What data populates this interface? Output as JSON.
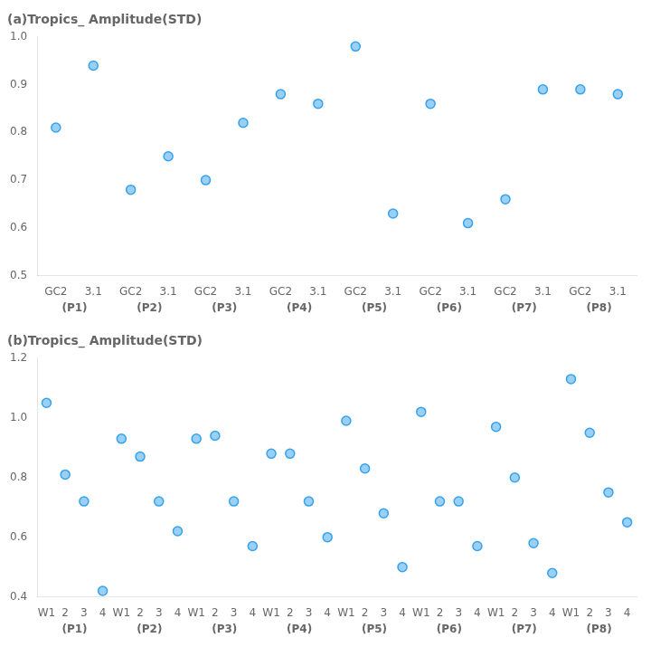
{
  "chart_data": [
    {
      "type": "scatter",
      "title": "(a)Tropics_ Amplitude(STD)",
      "categories": [
        "GC2",
        "3.1",
        "GC2",
        "3.1",
        "GC2",
        "3.1",
        "GC2",
        "3.1",
        "GC2",
        "3.1",
        "GC2",
        "3.1",
        "GC2",
        "3.1",
        "GC2",
        "3.1"
      ],
      "values": [
        0.81,
        0.94,
        0.68,
        0.75,
        0.7,
        0.82,
        0.88,
        0.86,
        0.98,
        0.63,
        0.86,
        0.61,
        0.66,
        0.89,
        0.89,
        0.88
      ],
      "annotations": [
        "(P1)",
        "(P2)",
        "(P3)",
        "(P4)",
        "(P5)",
        "(P6)",
        "(P7)",
        "(P8)"
      ],
      "ylim": [
        0.5,
        1.0
      ],
      "yticks": [
        0.5,
        0.6,
        0.7,
        0.8,
        0.9,
        {
          "value": 1.0,
          "label": "1.0"
        }
      ],
      "grid": false,
      "marker": "circle"
    },
    {
      "type": "scatter",
      "title": "(b)Tropics_ Amplitude(STD)",
      "categories": [
        "W1",
        "2",
        "3",
        "4",
        "W1",
        "2",
        "3",
        "4",
        "W1",
        "2",
        "3",
        "4",
        "W1",
        "2",
        "3",
        "4",
        "W1",
        "2",
        "3",
        "4",
        "W1",
        "2",
        "3",
        "4",
        "W1",
        "2",
        "3",
        "4",
        "W1",
        "2",
        "3",
        "4"
      ],
      "values": [
        1.05,
        0.81,
        0.72,
        0.42,
        0.93,
        0.87,
        0.72,
        0.62,
        0.93,
        0.94,
        0.72,
        0.57,
        0.88,
        0.88,
        0.72,
        0.6,
        0.99,
        0.83,
        0.68,
        0.5,
        1.02,
        0.72,
        0.72,
        0.57,
        0.97,
        0.8,
        0.58,
        0.48,
        1.13,
        0.95,
        0.75,
        0.65
      ],
      "annotations": [
        "(P1)",
        "(P2)",
        "(P3)",
        "(P4)",
        "(P5)",
        "(P6)",
        "(P7)",
        "(P8)"
      ],
      "ylim": [
        0.4,
        1.2
      ],
      "yticks": [
        0.4,
        0.6,
        0.8,
        {
          "value": 1.0,
          "label": "1.0"
        },
        1.2
      ],
      "grid": false,
      "marker": "circle"
    }
  ]
}
